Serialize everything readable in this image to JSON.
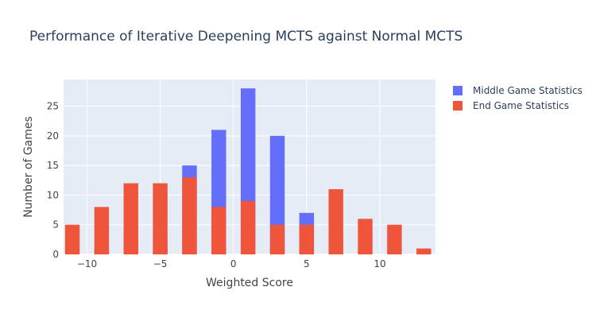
{
  "chart_data": {
    "type": "bar",
    "title": "Performance of Iterative Deepening MCTS against Normal MCTS",
    "xlabel": "Weighted Score",
    "ylabel": "Number of Games",
    "xlim": [
      -11.6,
      13.8
    ],
    "ylim": [
      0,
      29.5
    ],
    "xticks": [
      -10,
      -5,
      0,
      5,
      10
    ],
    "xtick_labels": [
      "−10",
      "−5",
      "0",
      "5",
      "10"
    ],
    "yticks": [
      0,
      5,
      10,
      15,
      20,
      25
    ],
    "grid": true,
    "legend_position": "top-right",
    "bar_width": 1.0,
    "series": [
      {
        "name": "Middle Game Statistics",
        "color": "#636efa",
        "x": [
          -9,
          -7,
          -5,
          -3,
          -1,
          1,
          3,
          5,
          7
        ],
        "values": [
          1,
          3,
          2,
          15,
          21,
          28,
          20,
          7,
          3
        ]
      },
      {
        "name": "End Game Statistics",
        "color": "#ef553b",
        "x": [
          -11,
          -9,
          -7,
          -5,
          -3,
          -1,
          1,
          3,
          5,
          7,
          9,
          11,
          13
        ],
        "values": [
          5,
          8,
          12,
          12,
          13,
          8,
          9,
          5,
          5,
          11,
          6,
          5,
          1
        ]
      }
    ]
  }
}
